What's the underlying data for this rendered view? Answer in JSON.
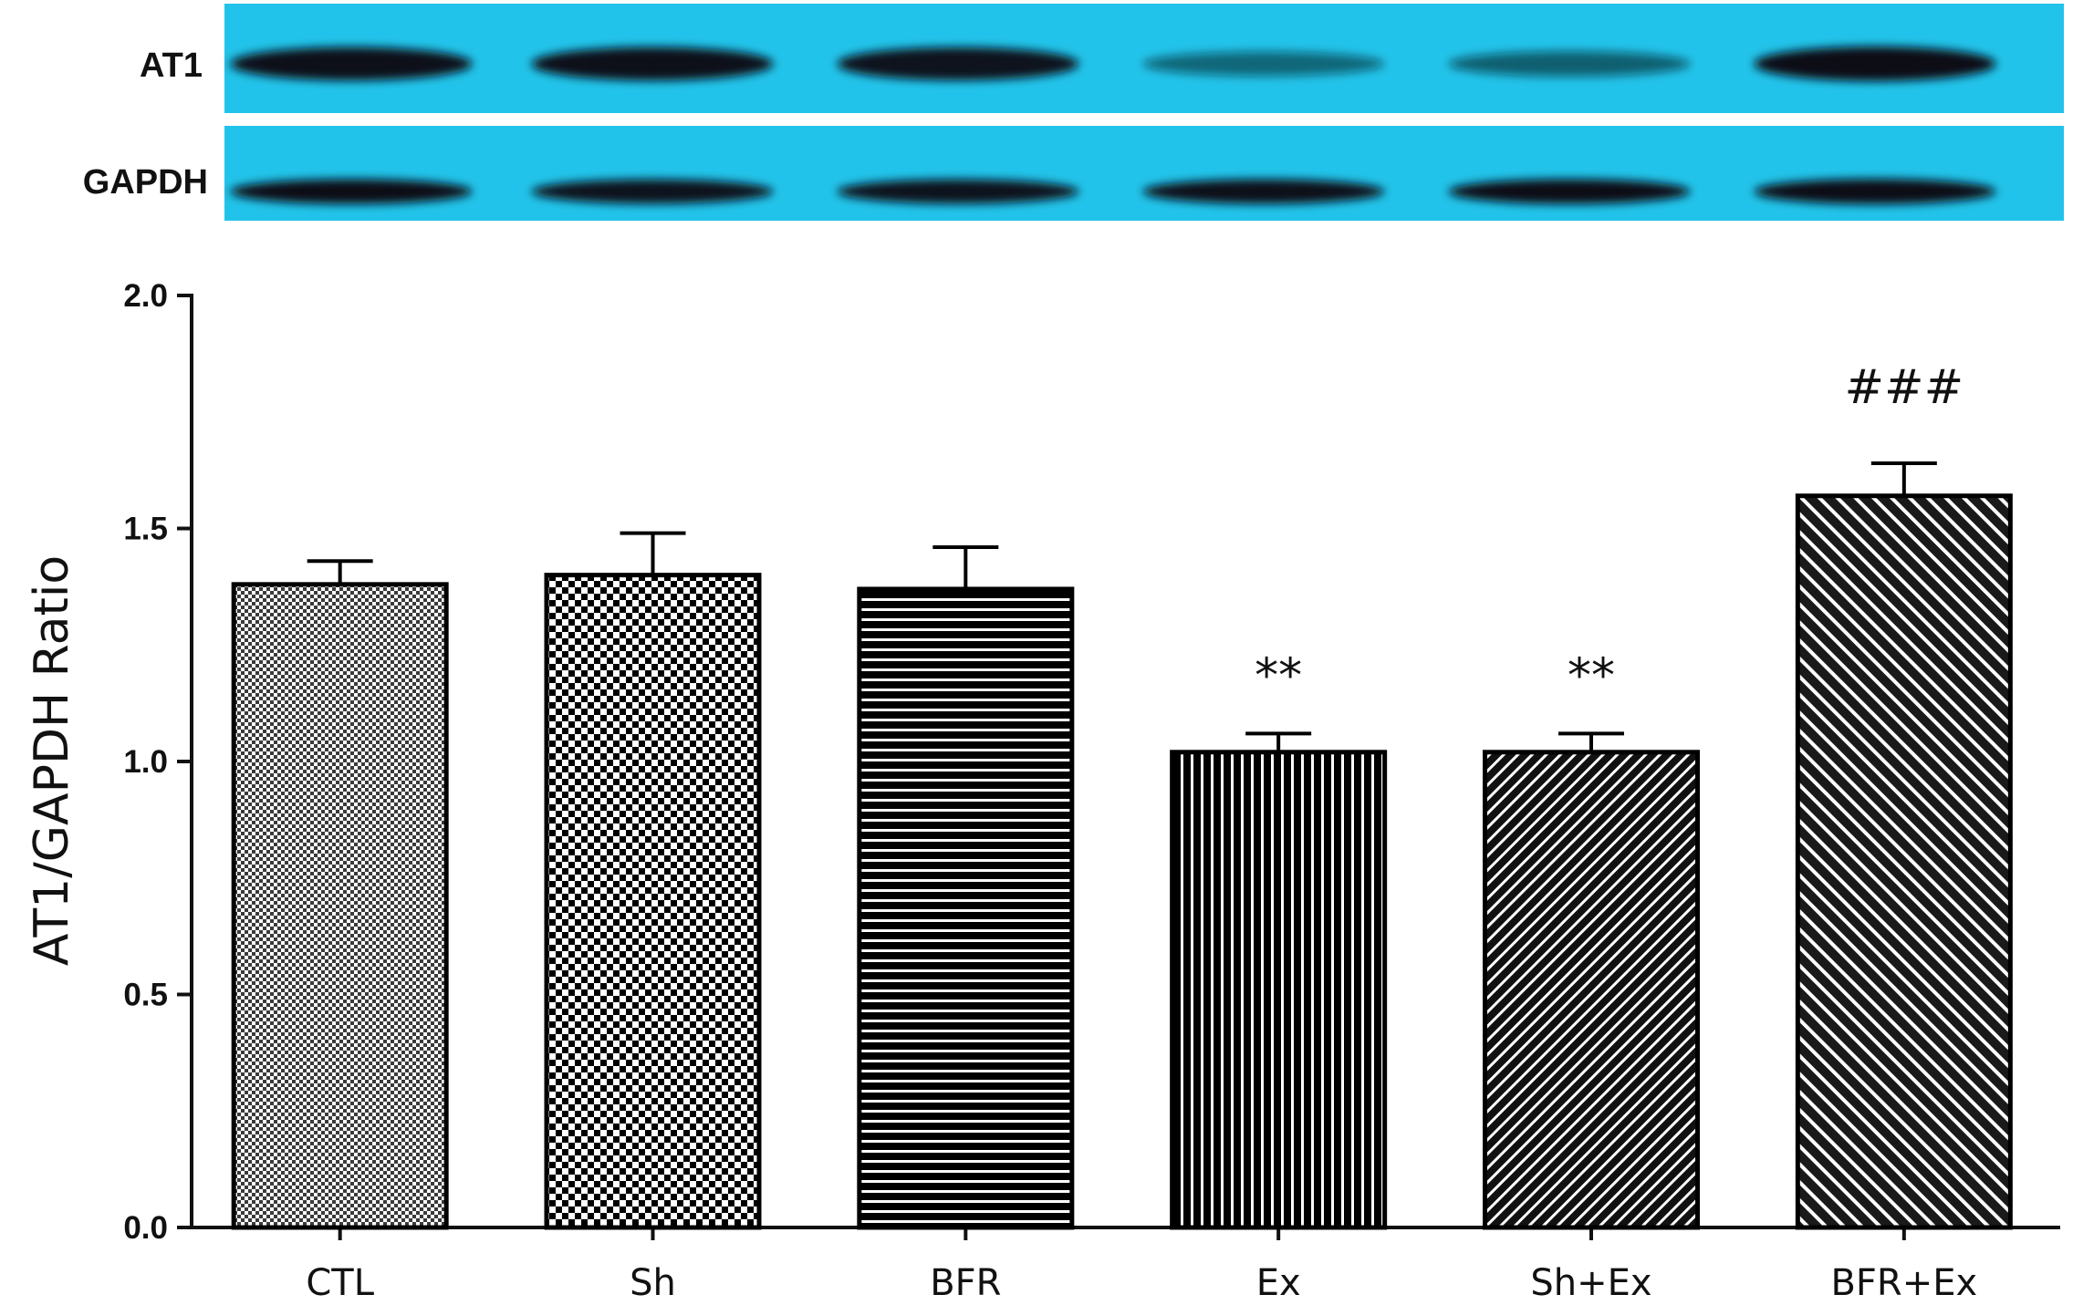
{
  "blot": {
    "rows": [
      {
        "label": "AT1",
        "intensities": [
          0.92,
          0.92,
          0.9,
          0.35,
          0.4,
          1.0
        ]
      },
      {
        "label": "GAPDH",
        "intensities": [
          0.95,
          0.9,
          0.9,
          0.92,
          0.95,
          0.98
        ]
      }
    ],
    "membrane_color": "#22c3ea",
    "band_color": "#0a0f14"
  },
  "chart_data": {
    "type": "bar",
    "categories": [
      "CTL",
      "Sh",
      "BFR",
      "Ex",
      "Sh+Ex",
      "BFR+Ex"
    ],
    "values": [
      1.38,
      1.4,
      1.37,
      1.02,
      1.02,
      1.57
    ],
    "errors": [
      0.05,
      0.09,
      0.09,
      0.04,
      0.04,
      0.07
    ],
    "patterns": [
      "fine-check",
      "checkerboard",
      "horizontal-lines",
      "vertical-lines",
      "diagonal-lines-dense",
      "diagonal-lines"
    ],
    "annotations": [
      "",
      "",
      "",
      "**",
      "**",
      "###"
    ],
    "xlabel": "",
    "ylabel": "AT1/GAPDH Ratio",
    "ylim": [
      0,
      2.0
    ],
    "yticks": [
      "0.0",
      "0.5",
      "1.0",
      "1.5",
      "2.0"
    ],
    "grid": false
  }
}
